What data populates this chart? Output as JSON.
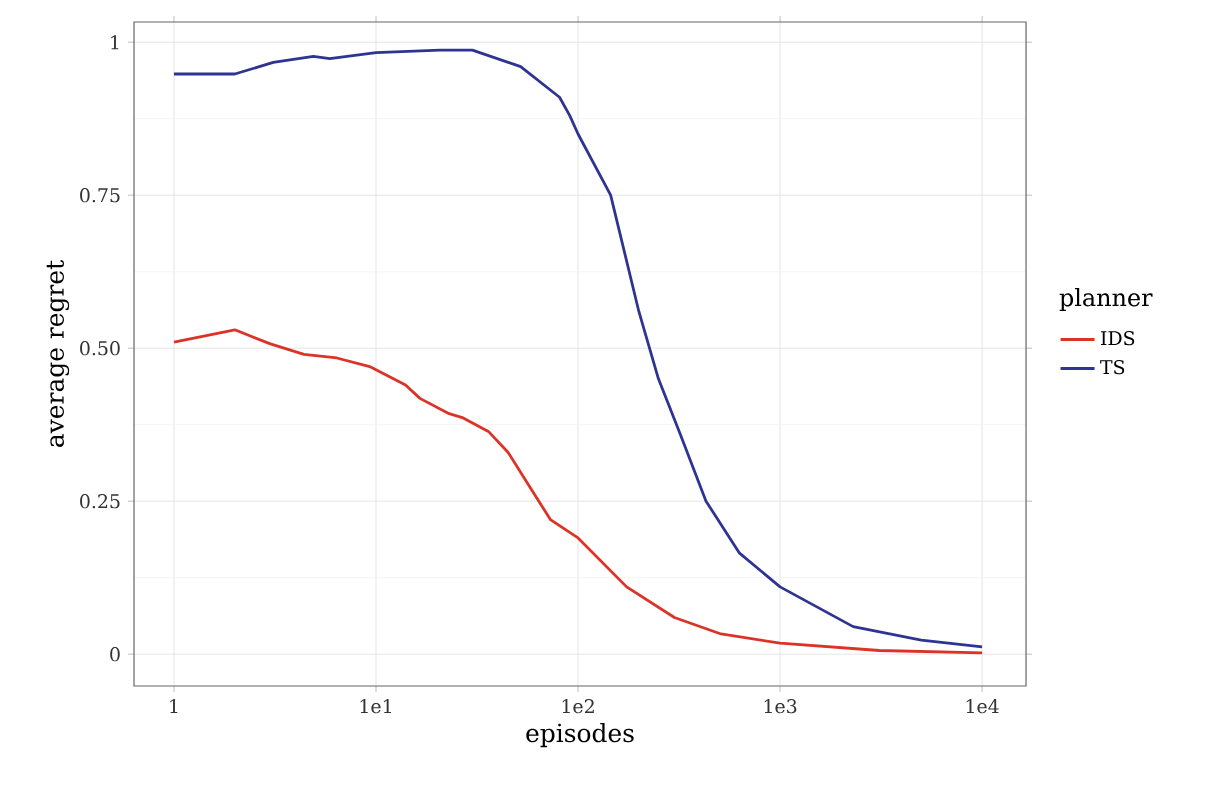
{
  "chart_data": {
    "type": "line",
    "xlabel": "episodes",
    "ylabel": "average regret",
    "legend_title": "planner",
    "legend": "right",
    "grid": true,
    "log": "x",
    "line_style": "solid",
    "marker": "none",
    "xlim": [
      0.634,
      16500
    ],
    "ylim": [
      -0.052,
      1.033
    ],
    "xticks": [
      {
        "value": 1,
        "label": "1"
      },
      {
        "value": 10,
        "label": "1e1"
      },
      {
        "value": 100,
        "label": "1e2"
      },
      {
        "value": 1000,
        "label": "1e3"
      },
      {
        "value": 10000,
        "label": "1e4"
      }
    ],
    "yticks": [
      {
        "value": 0,
        "label": "0"
      },
      {
        "value": 0.25,
        "label": "0.25"
      },
      {
        "value": 0.5,
        "label": "0.50"
      },
      {
        "value": 0.75,
        "label": "0.75"
      },
      {
        "value": 1,
        "label": "1"
      }
    ],
    "series": [
      {
        "name": "IDS",
        "color": "#dc3327",
        "x": [
          1,
          2,
          3,
          4.4,
          6.4,
          9.3,
          14,
          16.5,
          23,
          27,
          36,
          45,
          56,
          73,
          100,
          174,
          300,
          510,
          1000,
          3100,
          10000
        ],
        "values": [
          0.51,
          0.53,
          0.507,
          0.49,
          0.484,
          0.47,
          0.44,
          0.418,
          0.393,
          0.386,
          0.364,
          0.33,
          0.28,
          0.22,
          0.19,
          0.11,
          0.06,
          0.033,
          0.018,
          0.006,
          0.002
        ]
      },
      {
        "name": "TS",
        "color": "#2f3492",
        "x": [
          1,
          2,
          3.1,
          4.9,
          5.9,
          10,
          20.7,
          30,
          52,
          81,
          91,
          100,
          145,
          200,
          250,
          320,
          430,
          630,
          1000,
          2300,
          5000,
          10000
        ],
        "values": [
          0.948,
          0.948,
          0.967,
          0.977,
          0.973,
          0.983,
          0.987,
          0.987,
          0.96,
          0.91,
          0.88,
          0.85,
          0.75,
          0.56,
          0.45,
          0.36,
          0.25,
          0.165,
          0.11,
          0.045,
          0.023,
          0.012
        ]
      }
    ]
  }
}
